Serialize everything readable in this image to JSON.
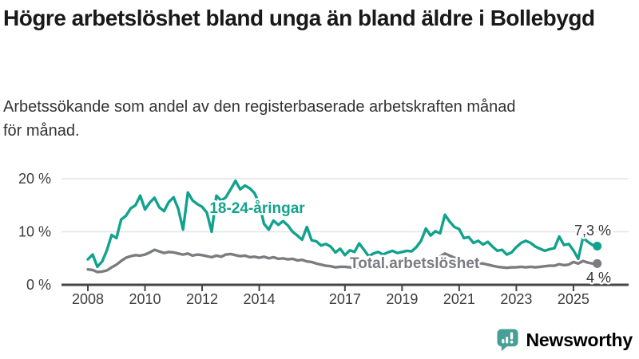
{
  "header": {
    "title": "Högre arbetslöshet bland unga än bland äldre i Bollebygd",
    "subtitle": "Arbetssökande som andel av den registerbaserade arbetskraften månad för månad."
  },
  "branding": {
    "logo_text": "Newsworthy",
    "logo_icon": "chart-speech-bubble-icon"
  },
  "colors": {
    "youth": "#11a28d",
    "total": "#7b7c80",
    "axis": "#454545",
    "grid": "#e3e3e3",
    "text": "#333333",
    "brand": "#46a098"
  },
  "chart_data": {
    "type": "line",
    "title": "Högre arbetslöshet bland unga än bland äldre i Bollebygd",
    "xlabel": "",
    "ylabel": "",
    "ylim": [
      0,
      20
    ],
    "xlim": [
      2008,
      2025.9
    ],
    "grid": "horizontal",
    "legend_position": "inline-labels",
    "yticks": [
      {
        "value": 0,
        "label": "0 %"
      },
      {
        "value": 10,
        "label": "10 %"
      },
      {
        "value": 20,
        "label": "20 %"
      }
    ],
    "xticks": [
      2008,
      2010,
      2012,
      2014,
      2017,
      2019,
      2021,
      2023,
      2025
    ],
    "x_start": 2008.0,
    "x_step_years": 0.16667,
    "unit": "% av arbetskraften, månadsvis",
    "series": [
      {
        "name": "18-24-åringar",
        "color": "#11a28d",
        "end_label": "7,3 %",
        "end_value": 7.3,
        "values": [
          4.8,
          5.7,
          3.4,
          4.4,
          6.5,
          9.4,
          8.8,
          12.3,
          13.0,
          14.4,
          15.0,
          16.8,
          14.2,
          15.5,
          16.4,
          14.6,
          13.9,
          15.6,
          16.5,
          14.3,
          10.4,
          17.4,
          15.9,
          15.2,
          14.7,
          13.6,
          10.0,
          16.8,
          15.9,
          16.5,
          18.0,
          19.6,
          18.0,
          18.7,
          18.2,
          17.3,
          15.3,
          11.5,
          10.4,
          12.1,
          11.3,
          12.0,
          11.2,
          10.0,
          9.3,
          8.5,
          10.9,
          8.4,
          8.2,
          7.4,
          7.7,
          7.2,
          6.1,
          6.8,
          5.6,
          6.5,
          6.2,
          7.8,
          6.6,
          5.4,
          5.9,
          6.2,
          5.7,
          6.1,
          6.4,
          6.0,
          6.2,
          6.4,
          6.3,
          7.1,
          8.3,
          10.6,
          9.3,
          10.1,
          9.7,
          13.2,
          11.9,
          10.9,
          10.5,
          8.8,
          9.0,
          7.9,
          8.3,
          7.6,
          8.1,
          7.2,
          6.4,
          6.6,
          5.7,
          6.1,
          7.1,
          7.9,
          8.3,
          7.9,
          7.2,
          6.8,
          6.4,
          6.7,
          6.9,
          9.1,
          7.5,
          7.7,
          6.5,
          4.9,
          8.9,
          8.1,
          7.5,
          7.3
        ]
      },
      {
        "name": "Total arbetslöshet",
        "color": "#7b7c80",
        "end_label": "4 %",
        "end_value": 4.0,
        "values": [
          2.9,
          2.8,
          2.4,
          2.5,
          2.7,
          3.3,
          3.8,
          4.5,
          5.1,
          5.4,
          5.6,
          5.5,
          5.7,
          6.1,
          6.6,
          6.3,
          6.0,
          6.2,
          6.1,
          5.9,
          5.7,
          5.9,
          5.5,
          5.7,
          5.6,
          5.4,
          5.2,
          5.5,
          5.3,
          5.7,
          5.8,
          5.6,
          5.4,
          5.5,
          5.2,
          5.3,
          5.1,
          5.3,
          5.0,
          5.2,
          4.9,
          5.0,
          4.8,
          4.9,
          4.6,
          4.7,
          4.4,
          4.3,
          4.0,
          3.8,
          3.6,
          3.5,
          3.3,
          3.4,
          3.4,
          3.3,
          3.2,
          3.3,
          3.2,
          3.4,
          3.5,
          3.4,
          3.3,
          3.4,
          3.5,
          3.6,
          3.6,
          3.5,
          3.6,
          3.7,
          3.8,
          4.0,
          4.3,
          4.8,
          5.3,
          5.9,
          5.5,
          5.1,
          4.9,
          4.7,
          4.5,
          4.3,
          4.1,
          4.0,
          3.8,
          3.6,
          3.4,
          3.3,
          3.2,
          3.3,
          3.3,
          3.4,
          3.3,
          3.4,
          3.3,
          3.4,
          3.5,
          3.6,
          3.6,
          3.9,
          3.7,
          3.8,
          4.3,
          4.0,
          4.5,
          4.2,
          4.0,
          4.0
        ]
      }
    ]
  }
}
